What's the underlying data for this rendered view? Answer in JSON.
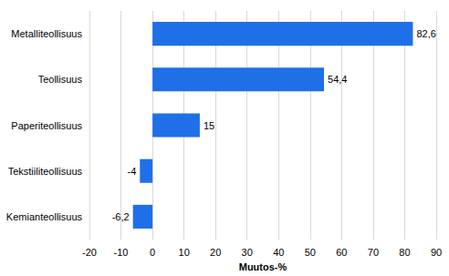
{
  "chart_data": {
    "type": "bar",
    "orientation": "horizontal",
    "categories": [
      "Metalliteollisuus",
      "Teollisuus",
      "Paperiteollisuus",
      "Tekstiiliteollisuus",
      "Kemianteollisuus"
    ],
    "values": [
      82.6,
      54.4,
      15,
      -4,
      -6.2
    ],
    "value_labels": [
      "82,6",
      "54,4",
      "15",
      "-4",
      "-6,2"
    ],
    "color": "#1f6fe8",
    "xlabel": "Muutos-%",
    "xlim": [
      -20,
      90
    ],
    "xticks": [
      -20,
      -10,
      0,
      10,
      20,
      30,
      40,
      50,
      60,
      70,
      80,
      90
    ],
    "grid": true,
    "data_labels": true
  }
}
